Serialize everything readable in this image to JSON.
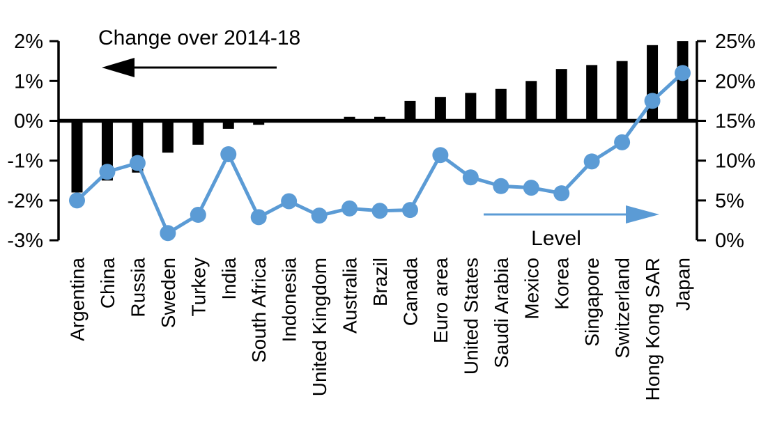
{
  "chart_data": {
    "type": "combo-bar-line",
    "categories": [
      "Argentina",
      "China",
      "Russia",
      "Sweden",
      "Turkey",
      "India",
      "South Africa",
      "Indonesia",
      "United Kingdom",
      "Australia",
      "Brazil",
      "Canada",
      "Euro area",
      "United States",
      "Saudi Arabia",
      "Mexico",
      "Korea",
      "Singapore",
      "Switzerland",
      "Hong Kong SAR",
      "Japan"
    ],
    "series": [
      {
        "name": "Change over 2014-18",
        "type": "bar",
        "axis": "left",
        "color": "#000000",
        "values": [
          -1.8,
          -1.5,
          -1.3,
          -0.8,
          -0.6,
          -0.2,
          -0.1,
          0,
          0,
          0.1,
          0.1,
          0.5,
          0.6,
          0.7,
          0.8,
          1.0,
          1.3,
          1.4,
          1.5,
          1.9,
          2.0
        ]
      },
      {
        "name": "Level",
        "type": "line",
        "axis": "right",
        "color": "#5B9BD5",
        "values": [
          5.0,
          8.6,
          9.7,
          0.9,
          3.2,
          10.8,
          2.9,
          4.9,
          3.1,
          4.0,
          3.7,
          3.8,
          10.7,
          7.9,
          6.8,
          6.6,
          5.9,
          9.9,
          12.3,
          17.5,
          21.0
        ]
      }
    ],
    "left_axis": {
      "min": -3,
      "max": 2,
      "tick_values": [
        2,
        1,
        0,
        -1,
        -2,
        -3
      ],
      "tick_labels": [
        "2%",
        "1%",
        "0%",
        "-1%",
        "-2%",
        "-3%"
      ]
    },
    "right_axis": {
      "min": 0,
      "max": 25,
      "tick_values": [
        25,
        20,
        15,
        10,
        5,
        0
      ],
      "tick_labels": [
        "25%",
        "20%",
        "15%",
        "10%",
        "5%",
        "0%"
      ]
    },
    "annotations": {
      "change_label": "Change over 2014-18",
      "change_arrow_direction": "left",
      "level_label": "Level",
      "level_arrow_direction": "right"
    },
    "colors": {
      "bar": "#000000",
      "line": "#5B9BD5",
      "text": "#000000",
      "background": "#FFFFFF"
    },
    "gridlines": false,
    "legend_position": "none"
  }
}
